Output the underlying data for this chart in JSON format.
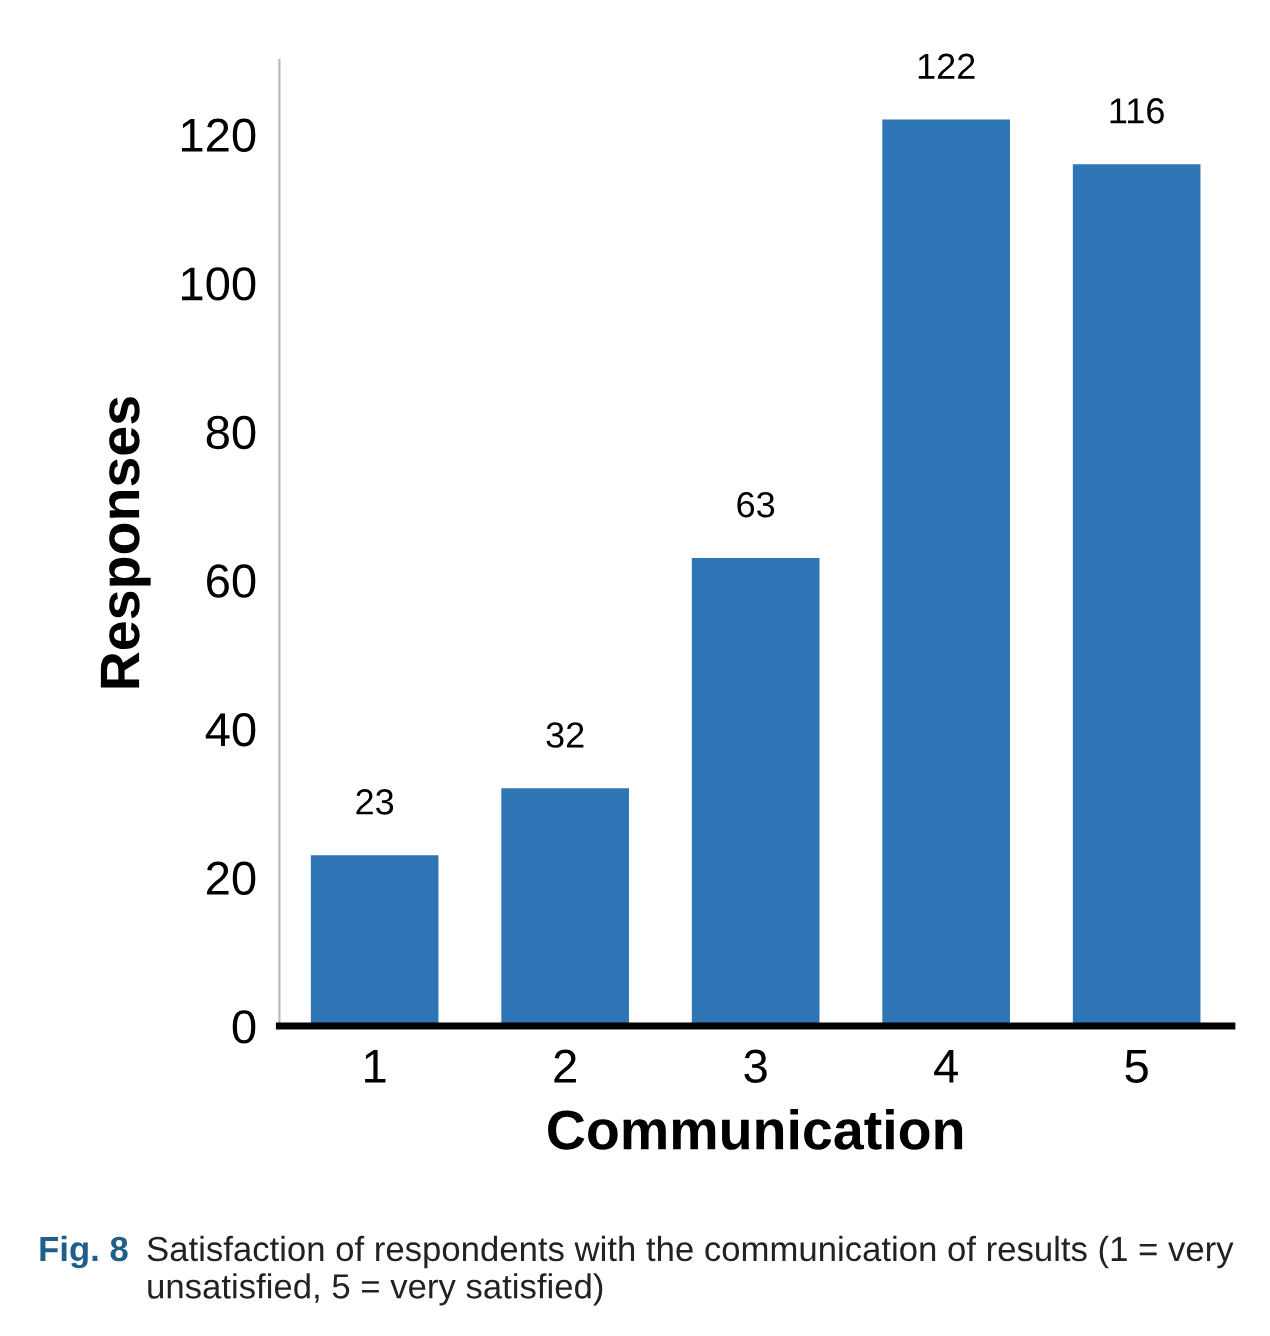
{
  "chart_data": {
    "type": "bar",
    "xlabel": "Communication",
    "ylabel": "Responses",
    "categories": [
      "1",
      "2",
      "3",
      "4",
      "5"
    ],
    "values": [
      23,
      32,
      63,
      122,
      116
    ],
    "color": "#2e75b6",
    "data_labels": true,
    "grid": false,
    "legend": false,
    "ylim": [
      0,
      130
    ],
    "yticks": [
      0,
      20,
      40,
      60,
      80,
      100,
      120
    ],
    "annotations": [
      "Fig. 8",
      "Satisfaction of respondents with the communication of results (1 = very unsatisfied, 5 = very satisfied)"
    ]
  }
}
